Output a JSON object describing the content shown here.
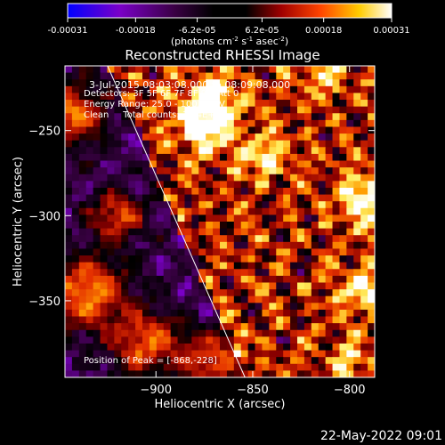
{
  "chart_data": {
    "type": "heatmap",
    "title": "Reconstructed RHESSI Image",
    "colorbar": {
      "ticks": [
        "-0.00031",
        "-0.00018",
        "-6.2e-05",
        "6.2e-05",
        "0.00018",
        "0.00031"
      ],
      "tick_values": [
        -0.00031,
        -0.00018,
        -6.2e-05,
        6.2e-05,
        0.00018,
        0.00031
      ],
      "units_label": "(photons cm",
      "units_sup1": "-2",
      "units_mid": " s",
      "units_sup2": "-1",
      "units_mid2": " asec",
      "units_sup3": "-2",
      "units_end": ")",
      "range": [
        -0.00031,
        0.00031
      ]
    },
    "x_axis": {
      "label": "Heliocentric X (arcsec)",
      "ticks": [
        -900,
        -850,
        -800
      ],
      "tick_labels": [
        "−900",
        "−850",
        "−800"
      ],
      "range": [
        -947,
        -787
      ]
    },
    "y_axis": {
      "label": "Heliocentric Y (arcsec)",
      "ticks": [
        -250,
        -300,
        -350
      ],
      "tick_labels": [
        "−250",
        "−300",
        "−350"
      ],
      "range": [
        -395,
        -212
      ]
    },
    "annotations": {
      "date_range": "3-Jul-2015 08:03:08.000 to 08:09:08.000",
      "detectors": "Detectors: 3F 5F 6F 7F 8F 9F, Att 0",
      "energy": "Energy Range: 25.0 - 100.0 keV",
      "method": "Clean     Total counts: 1.04E+04",
      "peak": "Position of Peak = [-868,-228]"
    },
    "peak": {
      "x": -868,
      "y": -228
    },
    "limb_line": {
      "x1": -925,
      "y1": -212,
      "x2": -854,
      "y2": -395
    },
    "grid": false,
    "colormap": [
      "#0000ff",
      "#7a00c8",
      "#3a0044",
      "#000000",
      "#8a0000",
      "#e53000",
      "#ff9a00",
      "#ffee60",
      "#ffffff"
    ]
  },
  "footer": {
    "timestamp": "22-May-2022 09:01"
  }
}
